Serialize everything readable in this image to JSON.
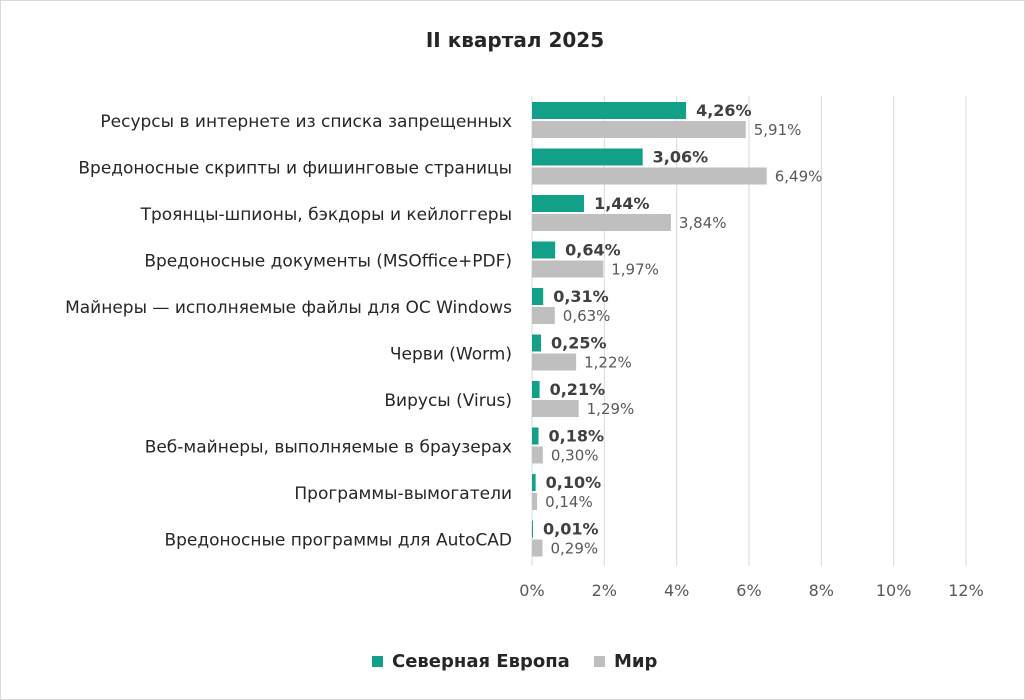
{
  "chart_data": {
    "type": "bar",
    "orientation": "horizontal",
    "title": "II квартал 2025",
    "categories": [
      "Ресурсы в интернете из списка запрещенных",
      "Вредоносные скрипты и фишинговые страницы",
      "Троянцы-шпионы, бэкдоры и кейлоггеры",
      "Вредоносные документы (MSOffice+PDF)",
      "Майнеры — исполняемые файлы для ОС Windows",
      "Черви (Worm)",
      "Вирусы (Virus)",
      "Веб-майнеры, выполняемые в браузерах",
      "Программы-вымогатели",
      "Вредоносные программы для AutoCAD"
    ],
    "series": [
      {
        "name": "Северная Европа",
        "color": "#12a088",
        "values": [
          4.26,
          3.06,
          1.44,
          0.64,
          0.31,
          0.25,
          0.21,
          0.18,
          0.1,
          0.01
        ],
        "labels": [
          "4,26%",
          "3,06%",
          "1,44%",
          "0,64%",
          "0,31%",
          "0,25%",
          "0,21%",
          "0,18%",
          "0,10%",
          "0,01%"
        ]
      },
      {
        "name": "Мир",
        "color": "#bfbfbf",
        "values": [
          5.91,
          6.49,
          3.84,
          1.97,
          0.63,
          1.22,
          1.29,
          0.3,
          0.14,
          0.29
        ],
        "labels": [
          "5,91%",
          "6,49%",
          "3,84%",
          "1,97%",
          "0,63%",
          "1,22%",
          "1,29%",
          "0,30%",
          "0,14%",
          "0,29%"
        ]
      }
    ],
    "xlim": [
      0,
      12
    ],
    "x_ticks": [
      0,
      2,
      4,
      6,
      8,
      10,
      12
    ],
    "x_tick_labels": [
      "0%",
      "2%",
      "4%",
      "6%",
      "8%",
      "10%",
      "12%"
    ],
    "grid": true,
    "legend": "bottom"
  }
}
